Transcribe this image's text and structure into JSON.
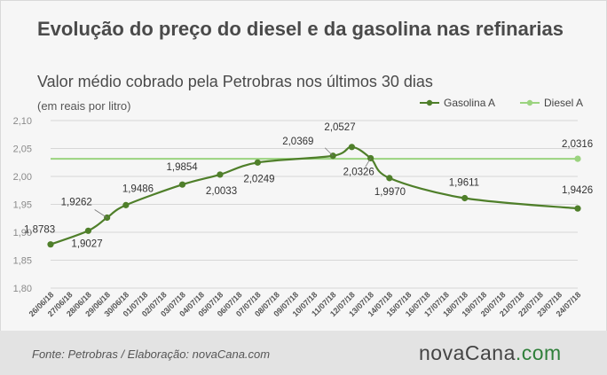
{
  "header": {
    "title": "Evolução do preço do diesel e da gasolina nas refinarias",
    "subtitle": "Valor médio cobrado pela Petrobras nos últimos 30 dias",
    "unit": "(em reais por litro)"
  },
  "footer": {
    "source": "Fonte: Petrobras / Elaboração: novaCana.com",
    "brand_main": "novaCana",
    "brand_tld": ".com"
  },
  "colors": {
    "gasolina": "#4f7f2a",
    "diesel": "#9bd37f",
    "text": "#4a4a4a",
    "grid": "#d7d7d7"
  },
  "chart_data": {
    "type": "line",
    "title": "Evolução do preço do diesel e da gasolina nas refinarias",
    "subtitle": "Valor médio cobrado pela Petrobras nos últimos 30 dias",
    "ylabel": "(em reais por litro)",
    "ylim": [
      1.8,
      2.1
    ],
    "yticks": [
      1.8,
      1.85,
      1.9,
      1.95,
      2.0,
      2.05,
      2.1
    ],
    "ytick_labels": [
      "1,80",
      "1,85",
      "1,90",
      "1,95",
      "2,00",
      "2,05",
      "2,10"
    ],
    "grid": "horizontal",
    "legend": "top-right",
    "categories": [
      "26/06/18",
      "27/06/18",
      "28/06/18",
      "29/06/18",
      "30/06/18",
      "01/07/18",
      "02/07/18",
      "03/07/18",
      "04/07/18",
      "05/07/18",
      "06/07/18",
      "07/07/18",
      "08/07/18",
      "09/07/18",
      "10/07/18",
      "11/07/18",
      "12/07/18",
      "13/07/18",
      "14/07/18",
      "15/07/18",
      "16/07/18",
      "17/07/18",
      "18/07/18",
      "19/07/18",
      "20/07/18",
      "21/07/18",
      "22/07/18",
      "23/07/18",
      "24/07/18"
    ],
    "series": [
      {
        "name": "Gasolina A",
        "points": [
          {
            "x": "26/06/18",
            "y": 1.8783,
            "label": "1,8783"
          },
          {
            "x": "28/06/18",
            "y": 1.9027,
            "label": "1,9027"
          },
          {
            "x": "29/06/18",
            "y": 1.9262,
            "label": "1,9262"
          },
          {
            "x": "30/06/18",
            "y": 1.9486,
            "label": "1,9486"
          },
          {
            "x": "03/07/18",
            "y": 1.9854,
            "label": "1,9854"
          },
          {
            "x": "05/07/18",
            "y": 2.0033,
            "label": "2,0033"
          },
          {
            "x": "07/07/18",
            "y": 2.0249,
            "label": "2,0249"
          },
          {
            "x": "11/07/18",
            "y": 2.0369,
            "label": "2,0369"
          },
          {
            "x": "12/07/18",
            "y": 2.0527,
            "label": "2,0527"
          },
          {
            "x": "13/07/18",
            "y": 2.0326,
            "label": "2,0326"
          },
          {
            "x": "14/07/18",
            "y": 1.997,
            "label": "1,9970"
          },
          {
            "x": "18/07/18",
            "y": 1.9611,
            "label": "1,9611"
          },
          {
            "x": "24/07/18",
            "y": 1.9426,
            "label": "1,9426"
          }
        ]
      },
      {
        "name": "Diesel A",
        "points": [
          {
            "x": "26/06/18",
            "y": 2.0316,
            "label": ""
          },
          {
            "x": "24/07/18",
            "y": 2.0316,
            "label": "2,0316"
          }
        ]
      }
    ]
  }
}
